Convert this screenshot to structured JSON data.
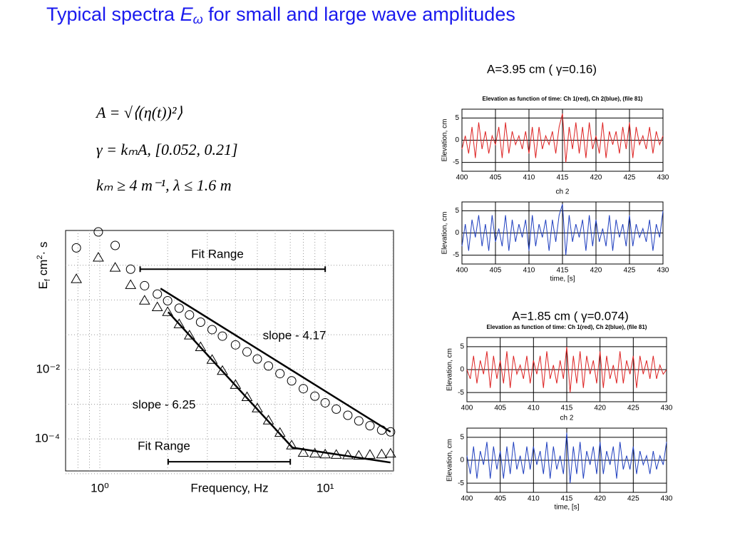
{
  "title_parts": [
    "Typical spectra ",
    "E",
    "ω",
    " for small and large wave amplitudes"
  ],
  "formulas": [
    "A = √⟨(η(t))²⟩",
    "γ = kₘA,   [0.052, 0.21]",
    "kₘ ≥ 4 m⁻¹,   λ ≤ 1.6 m"
  ],
  "panel_headings": [
    "A=3.95 cm ( γ=0.16)",
    "A=1.85 cm ( γ=0.074)"
  ],
  "chart_data": [
    {
      "type": "loglog-scatter",
      "xlabel": "Frequency, Hz",
      "ylabel_parts": [
        "E",
        "f",
        " cm",
        "2",
        "· s"
      ],
      "log_x": true,
      "log_y": true,
      "grid": true,
      "xlim": [
        0.705,
        20.1
      ],
      "ylim": [
        1.2e-05,
        100
      ],
      "xticks": [
        {
          "value": 1,
          "label": "10⁰"
        },
        {
          "value": 10,
          "label": "10¹"
        }
      ],
      "yticks": [
        {
          "value": 0.01,
          "label": "10⁻²"
        },
        {
          "value": 0.0001,
          "label": "10⁻⁴"
        }
      ],
      "xminorticks": [
        0.8,
        0.9,
        2,
        3,
        4,
        5,
        6,
        7,
        8,
        9,
        20
      ],
      "yminorticks": [
        1e-05,
        0.001,
        0.1,
        1,
        10
      ],
      "x": [
        0.787,
        0.985,
        1.17,
        1.37,
        1.58,
        1.8,
        2.0,
        2.25,
        2.5,
        2.8,
        3.15,
        3.5,
        4.0,
        4.5,
        5.0,
        5.6,
        6.3,
        7.1,
        8.0,
        9.0,
        10,
        11.2,
        12.6,
        14.1,
        15.8,
        17.8,
        19.5
      ],
      "series": [
        {
          "marker": "circle",
          "color": "#000000",
          "values": [
            31.6,
            91,
            37,
            7.7,
            2.57,
            1.48,
            0.95,
            0.58,
            0.37,
            0.23,
            0.14,
            0.091,
            0.051,
            0.032,
            0.02,
            0.0126,
            0.0076,
            0.0047,
            0.0028,
            0.0017,
            0.0011,
            0.00072,
            0.00048,
            0.00033,
            0.00024,
            0.00018,
            0.00016
          ]
        },
        {
          "marker": "triangle",
          "color": "#000000",
          "values": [
            4.0,
            16.6,
            8.5,
            2.7,
            0.96,
            0.62,
            0.45,
            0.2,
            0.095,
            0.044,
            0.019,
            0.0091,
            0.0036,
            0.0016,
            0.00076,
            0.00034,
            0.00015,
            6.5e-05,
            4e-05,
            3.8e-05,
            3.6e-05,
            3.5e-05,
            3.4e-05,
            3.3e-05,
            3.5e-05,
            3.6e-05,
            3.8e-05
          ]
        }
      ],
      "fits": [
        {
          "color": "#000000",
          "x": [
            1.86,
            19.5
          ],
          "values": [
            2.14,
            0.00016
          ]
        },
        {
          "color": "#000000",
          "x": [
            2.01,
            7.16,
            19.5
          ],
          "values": [
            0.45,
            5.6e-05,
            2.1e-05
          ]
        }
      ],
      "range_bars": [
        {
          "x": [
            1.51,
            10
          ],
          "y": 7.7
        },
        {
          "x": [
            2.01,
            7.0
          ],
          "y": 2.2e-05
        }
      ],
      "annotations": [
        "Fit Range",
        "slope - 4.17",
        "slope - 6.25",
        "Fit Range"
      ]
    },
    {
      "type": "timeseries",
      "title": "Elevation as function of time: Ch 1(red), Ch 2(blue), (file 81)",
      "ylabel": "Elevation, cm",
      "grid": true,
      "xlim": [
        400,
        430
      ],
      "xticks": [
        400,
        405,
        410,
        415,
        420,
        425,
        430
      ],
      "ylim": [
        -7,
        7
      ],
      "yticks": [
        -5,
        0,
        5
      ],
      "x": [
        400,
        400.5,
        401,
        401.5,
        402,
        402.5,
        403,
        403.5,
        404,
        404.5,
        405,
        405.5,
        406,
        406.5,
        407,
        407.5,
        408,
        408.5,
        409,
        409.5,
        410,
        410.5,
        411,
        411.5,
        412,
        412.5,
        413,
        413.5,
        414,
        414.5,
        415,
        415.5,
        416,
        416.5,
        417,
        417.5,
        418,
        418.5,
        419,
        419.5,
        420,
        420.5,
        421,
        421.5,
        422,
        422.5,
        423,
        423.5,
        424,
        424.5,
        425,
        425.5,
        426,
        426.5,
        427,
        427.5,
        428,
        428.5,
        429,
        429.5,
        430
      ],
      "series": [
        {
          "color": "#dd2222",
          "values": [
            -2,
            1,
            -3,
            3,
            -4,
            4,
            -2,
            2,
            -3,
            1,
            -1,
            3,
            -4,
            4,
            -3,
            2,
            -1,
            1,
            -2,
            2,
            -3,
            3,
            -4,
            3,
            -2,
            1,
            -1,
            2,
            -3,
            3,
            6,
            -5,
            3,
            -2,
            4,
            -3,
            3,
            -4,
            4,
            -2,
            1,
            -3,
            4,
            -4,
            2,
            -1,
            2,
            -3,
            3,
            -2,
            4,
            -4,
            3,
            -1,
            1,
            -2,
            3,
            -3,
            2,
            -1,
            1
          ]
        }
      ]
    },
    {
      "type": "timeseries",
      "title": "ch 2",
      "ylabel": "Elevation, cm",
      "xlabel": "time, [s]",
      "grid": true,
      "xlim": [
        400,
        430
      ],
      "xticks": [
        400,
        405,
        410,
        415,
        420,
        425,
        430
      ],
      "ylim": [
        -7,
        7
      ],
      "yticks": [
        -5,
        0,
        5
      ],
      "x": [
        400,
        400.5,
        401,
        401.5,
        402,
        402.5,
        403,
        403.5,
        404,
        404.5,
        405,
        405.5,
        406,
        406.5,
        407,
        407.5,
        408,
        408.5,
        409,
        409.5,
        410,
        410.5,
        411,
        411.5,
        412,
        412.5,
        413,
        413.5,
        414,
        414.5,
        415,
        415.5,
        416,
        416.5,
        417,
        417.5,
        418,
        418.5,
        419,
        419.5,
        420,
        420.5,
        421,
        421.5,
        422,
        422.5,
        423,
        423.5,
        424,
        424.5,
        425,
        425.5,
        426,
        426.5,
        427,
        427.5,
        428,
        428.5,
        429,
        429.5,
        430
      ],
      "series": [
        {
          "color": "#1f3fbf",
          "values": [
            -3,
            2,
            -4,
            3,
            -1,
            4,
            -3,
            2,
            -4,
            4,
            -2,
            1,
            -3,
            4,
            -4,
            3,
            -2,
            2,
            -1,
            3,
            -4,
            4,
            -3,
            2,
            -1,
            3,
            -4,
            3,
            -2,
            4,
            6.5,
            -5,
            4,
            -2,
            2,
            -1,
            3,
            -4,
            4,
            -3,
            3,
            -2,
            1,
            -3,
            4,
            -4,
            3,
            -1,
            2,
            -3,
            4,
            -3,
            2,
            -1,
            1,
            -2,
            3,
            -4,
            2,
            -1,
            5
          ]
        }
      ]
    },
    {
      "type": "timeseries",
      "title": "Elevation as function of time: Ch 1(red), Ch 2(blue), (file 81)",
      "ylabel": "Elevation, cm",
      "grid": true,
      "xlim": [
        400,
        430
      ],
      "xticks": [
        400,
        405,
        410,
        415,
        420,
        425,
        430
      ],
      "ylim": [
        -7,
        7
      ],
      "yticks": [
        -5,
        0,
        5
      ],
      "x": [
        400,
        400.5,
        401,
        401.5,
        402,
        402.5,
        403,
        403.5,
        404,
        404.5,
        405,
        405.5,
        406,
        406.5,
        407,
        407.5,
        408,
        408.5,
        409,
        409.5,
        410,
        410.5,
        411,
        411.5,
        412,
        412.5,
        413,
        413.5,
        414,
        414.5,
        415,
        415.5,
        416,
        416.5,
        417,
        417.5,
        418,
        418.5,
        419,
        419.5,
        420,
        420.5,
        421,
        421.5,
        422,
        422.5,
        423,
        423.5,
        424,
        424.5,
        425,
        425.5,
        426,
        426.5,
        427,
        427.5,
        428,
        428.5,
        429,
        429.5,
        430
      ],
      "series": [
        {
          "color": "#dd2222",
          "values": [
            0,
            -2,
            3,
            -3,
            2,
            -1,
            4,
            -4,
            3,
            -2,
            2,
            -3,
            4,
            -4,
            3,
            -1,
            1,
            -2,
            3,
            -3,
            2,
            -1,
            3,
            -4,
            4,
            -2,
            1,
            -3,
            2,
            -2,
            5,
            -5,
            3,
            -3,
            4,
            -4,
            3,
            -1,
            2,
            -3,
            4,
            -4,
            3,
            -2,
            1,
            -3,
            4,
            -3,
            2,
            -1,
            3,
            -4,
            3,
            -1,
            2,
            -2,
            3,
            -2,
            1,
            -1,
            0
          ]
        }
      ]
    },
    {
      "type": "timeseries",
      "title": "ch 2",
      "ylabel": "Elevation, cm",
      "xlabel": "time, [s]",
      "grid": true,
      "xlim": [
        400,
        430
      ],
      "xticks": [
        400,
        405,
        410,
        415,
        420,
        425,
        430
      ],
      "ylim": [
        -7,
        7
      ],
      "yticks": [
        -5,
        0,
        5
      ],
      "x": [
        400,
        400.5,
        401,
        401.5,
        402,
        402.5,
        403,
        403.5,
        404,
        404.5,
        405,
        405.5,
        406,
        406.5,
        407,
        407.5,
        408,
        408.5,
        409,
        409.5,
        410,
        410.5,
        411,
        411.5,
        412,
        412.5,
        413,
        413.5,
        414,
        414.5,
        415,
        415.5,
        416,
        416.5,
        417,
        417.5,
        418,
        418.5,
        419,
        419.5,
        420,
        420.5,
        421,
        421.5,
        422,
        422.5,
        423,
        423.5,
        424,
        424.5,
        425,
        425.5,
        426,
        426.5,
        427,
        427.5,
        428,
        428.5,
        429,
        429.5,
        430
      ],
      "series": [
        {
          "color": "#1f3fbf",
          "values": [
            1,
            -3,
            3,
            -4,
            2,
            -1,
            4,
            -4,
            3,
            -2,
            2,
            -4,
            3,
            -3,
            4,
            -2,
            1,
            -3,
            3,
            -2,
            3,
            -1,
            2,
            -3,
            4,
            -4,
            3,
            -2,
            1,
            -3,
            6,
            -5,
            3,
            -3,
            4,
            -4,
            2,
            -1,
            3,
            -3,
            4,
            -3,
            2,
            -1,
            3,
            -4,
            4,
            -2,
            1,
            -2,
            3,
            -3,
            2,
            -1,
            1,
            -3,
            2,
            -2,
            1,
            -1,
            4
          ]
        }
      ]
    }
  ]
}
